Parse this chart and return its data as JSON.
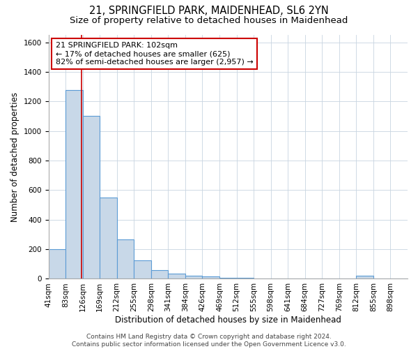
{
  "title1": "21, SPRINGFIELD PARK, MAIDENHEAD, SL6 2YN",
  "title2": "Size of property relative to detached houses in Maidenhead",
  "xlabel": "Distribution of detached houses by size in Maidenhead",
  "ylabel": "Number of detached properties",
  "bin_labels": [
    "41sqm",
    "83sqm",
    "126sqm",
    "169sqm",
    "212sqm",
    "255sqm",
    "298sqm",
    "341sqm",
    "384sqm",
    "426sqm",
    "469sqm",
    "512sqm",
    "555sqm",
    "598sqm",
    "641sqm",
    "684sqm",
    "727sqm",
    "769sqm",
    "812sqm",
    "855sqm",
    "898sqm"
  ],
  "bar_values": [
    200,
    1275,
    1100,
    550,
    265,
    125,
    60,
    35,
    20,
    15,
    5,
    5,
    3,
    2,
    0,
    0,
    0,
    0,
    20,
    3,
    1
  ],
  "bar_color": "#c8d8e8",
  "bar_edge_color": "#5b9bd5",
  "property_bar_index": 1,
  "property_line_color": "#cc0000",
  "annotation_text": "21 SPRINGFIELD PARK: 102sqm\n← 17% of detached houses are smaller (625)\n82% of semi-detached houses are larger (2,957) →",
  "annotation_box_color": "#ffffff",
  "annotation_box_edge_color": "#cc0000",
  "ylim": [
    0,
    1650
  ],
  "yticks": [
    0,
    200,
    400,
    600,
    800,
    1000,
    1200,
    1400,
    1600
  ],
  "grid_color": "#c8d4e0",
  "footer_text": "Contains HM Land Registry data © Crown copyright and database right 2024.\nContains public sector information licensed under the Open Government Licence v3.0.",
  "title1_fontsize": 10.5,
  "title2_fontsize": 9.5,
  "xlabel_fontsize": 8.5,
  "ylabel_fontsize": 8.5,
  "tick_fontsize": 7.5,
  "annotation_fontsize": 8,
  "footer_fontsize": 6.5
}
